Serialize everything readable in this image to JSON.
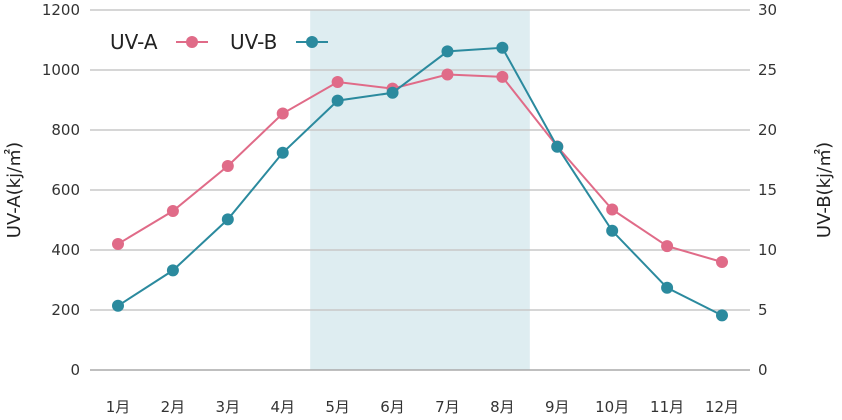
{
  "chart_data": {
    "type": "line",
    "categories": [
      "1月",
      "2月",
      "3月",
      "4月",
      "5月",
      "6月",
      "7月",
      "8月",
      "9月",
      "10月",
      "11月",
      "12月"
    ],
    "series": [
      {
        "name": "UV-A",
        "axis": "left",
        "color": "#e06b88",
        "values": [
          420,
          530,
          680,
          855,
          960,
          938,
          985,
          977,
          745,
          535,
          413,
          360
        ]
      },
      {
        "name": "UV-B",
        "axis": "right",
        "color": "#2b8a9e",
        "values": [
          5.35,
          8.3,
          12.55,
          18.1,
          22.45,
          23.1,
          26.55,
          26.85,
          18.6,
          11.6,
          6.85,
          4.55
        ]
      }
    ],
    "y_left": {
      "label": "UV-A(kj/㎡)",
      "min": 0,
      "max": 1200,
      "ticks": [
        0,
        200,
        400,
        600,
        800,
        1000,
        1200
      ],
      "tick_labels": [
        "0",
        "200",
        "400",
        "600",
        "800",
        "1000",
        "1200"
      ]
    },
    "y_right": {
      "label": "UV-B(kj/㎡)",
      "min": 0,
      "max": 30,
      "ticks": [
        0,
        5,
        10,
        15,
        20,
        25,
        30
      ],
      "tick_labels": [
        "0",
        "5",
        "10",
        "15",
        "20",
        "25",
        "30"
      ]
    },
    "highlight": {
      "from": "5月",
      "to": "8月",
      "color": "#deedf1"
    },
    "grid": true,
    "legend": {
      "position": "top-left"
    }
  }
}
